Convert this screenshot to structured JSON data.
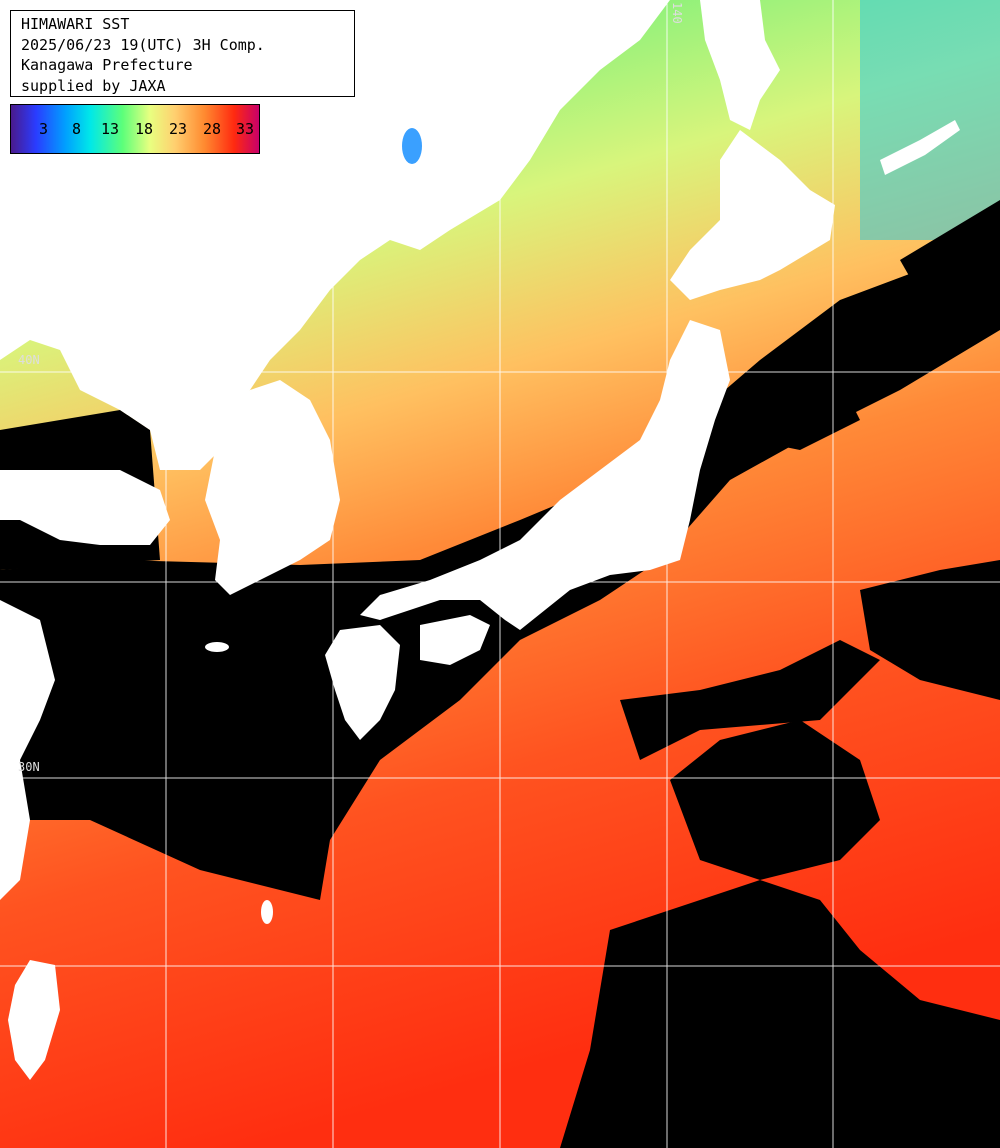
{
  "info": {
    "line1": "HIMAWARI SST",
    "line2": "2025/06/23 19(UTC) 3H Comp.",
    "line3": "Kanagawa Prefecture",
    "line4": "supplied by JAXA"
  },
  "legend": {
    "ticks": [
      "3",
      "8",
      "13",
      "18",
      "23",
      "28",
      "33"
    ]
  },
  "grid_labels": {
    "lat_a": "40N",
    "lat_b": "30N",
    "lon_a": "140"
  },
  "colors": {
    "land": "#ffffff",
    "cloud": "#000000",
    "grid": "#ffffff"
  }
}
